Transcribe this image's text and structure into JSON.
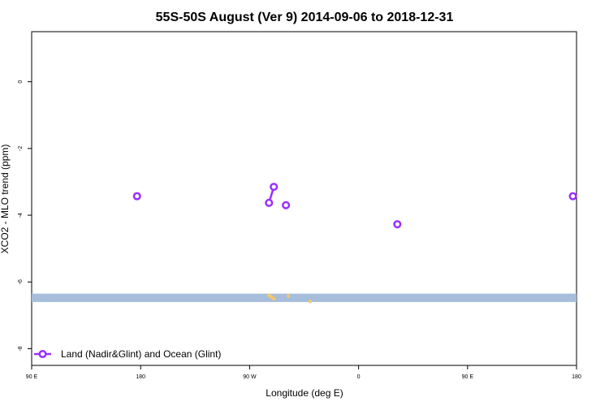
{
  "chart_data": {
    "type": "line",
    "title": "55S-50S August (Ver 9)   2014-09-06 to 2018-12-31",
    "xlabel": "Longitude (deg E)",
    "ylabel": "XCO2 - MLO trend (ppm)",
    "x_ticks": [
      {
        "value": 90,
        "label": "90 E"
      },
      {
        "value": 180,
        "label": "180"
      },
      {
        "value": 270,
        "label": "90 W"
      },
      {
        "value": 360,
        "label": "0"
      },
      {
        "value": 450,
        "label": "90 E"
      },
      {
        "value": 540,
        "label": "180"
      }
    ],
    "y_ticks": [
      {
        "value": 0,
        "label": "0"
      },
      {
        "value": -2,
        "label": "-2"
      },
      {
        "value": -4,
        "label": "-4"
      },
      {
        "value": -6,
        "label": "-6"
      },
      {
        "value": -8,
        "label": "-8"
      }
    ],
    "xlim": [
      90,
      540
    ],
    "ylim": [
      -8.5,
      1.5
    ],
    "grid": false,
    "legend_position": "bottom-left",
    "series": [
      {
        "name": "Land (Nadir&Glint) and Ocean (Glint)",
        "color": "#9b30ff",
        "segments": [
          [
            {
              "x": 177,
              "y": -3.43
            }
          ],
          [
            {
              "x": 286,
              "y": -3.63
            },
            {
              "x": 290,
              "y": -3.15
            }
          ],
          [
            {
              "x": 300,
              "y": -3.7
            }
          ],
          [
            {
              "x": 392,
              "y": -4.27
            }
          ],
          [
            {
              "x": 537,
              "y": -3.43
            }
          ]
        ]
      }
    ],
    "band": {
      "y_from": -6.35,
      "y_to": -6.6,
      "color": "#a6bddb"
    },
    "band_marks": [
      {
        "x": 286,
        "y": -6.4
      },
      {
        "x": 288,
        "y": -6.45
      },
      {
        "x": 290,
        "y": -6.5
      },
      {
        "x": 302,
        "y": -6.42
      },
      {
        "x": 320,
        "y": -6.58
      }
    ],
    "band_mark_color": "#f5c86a"
  }
}
